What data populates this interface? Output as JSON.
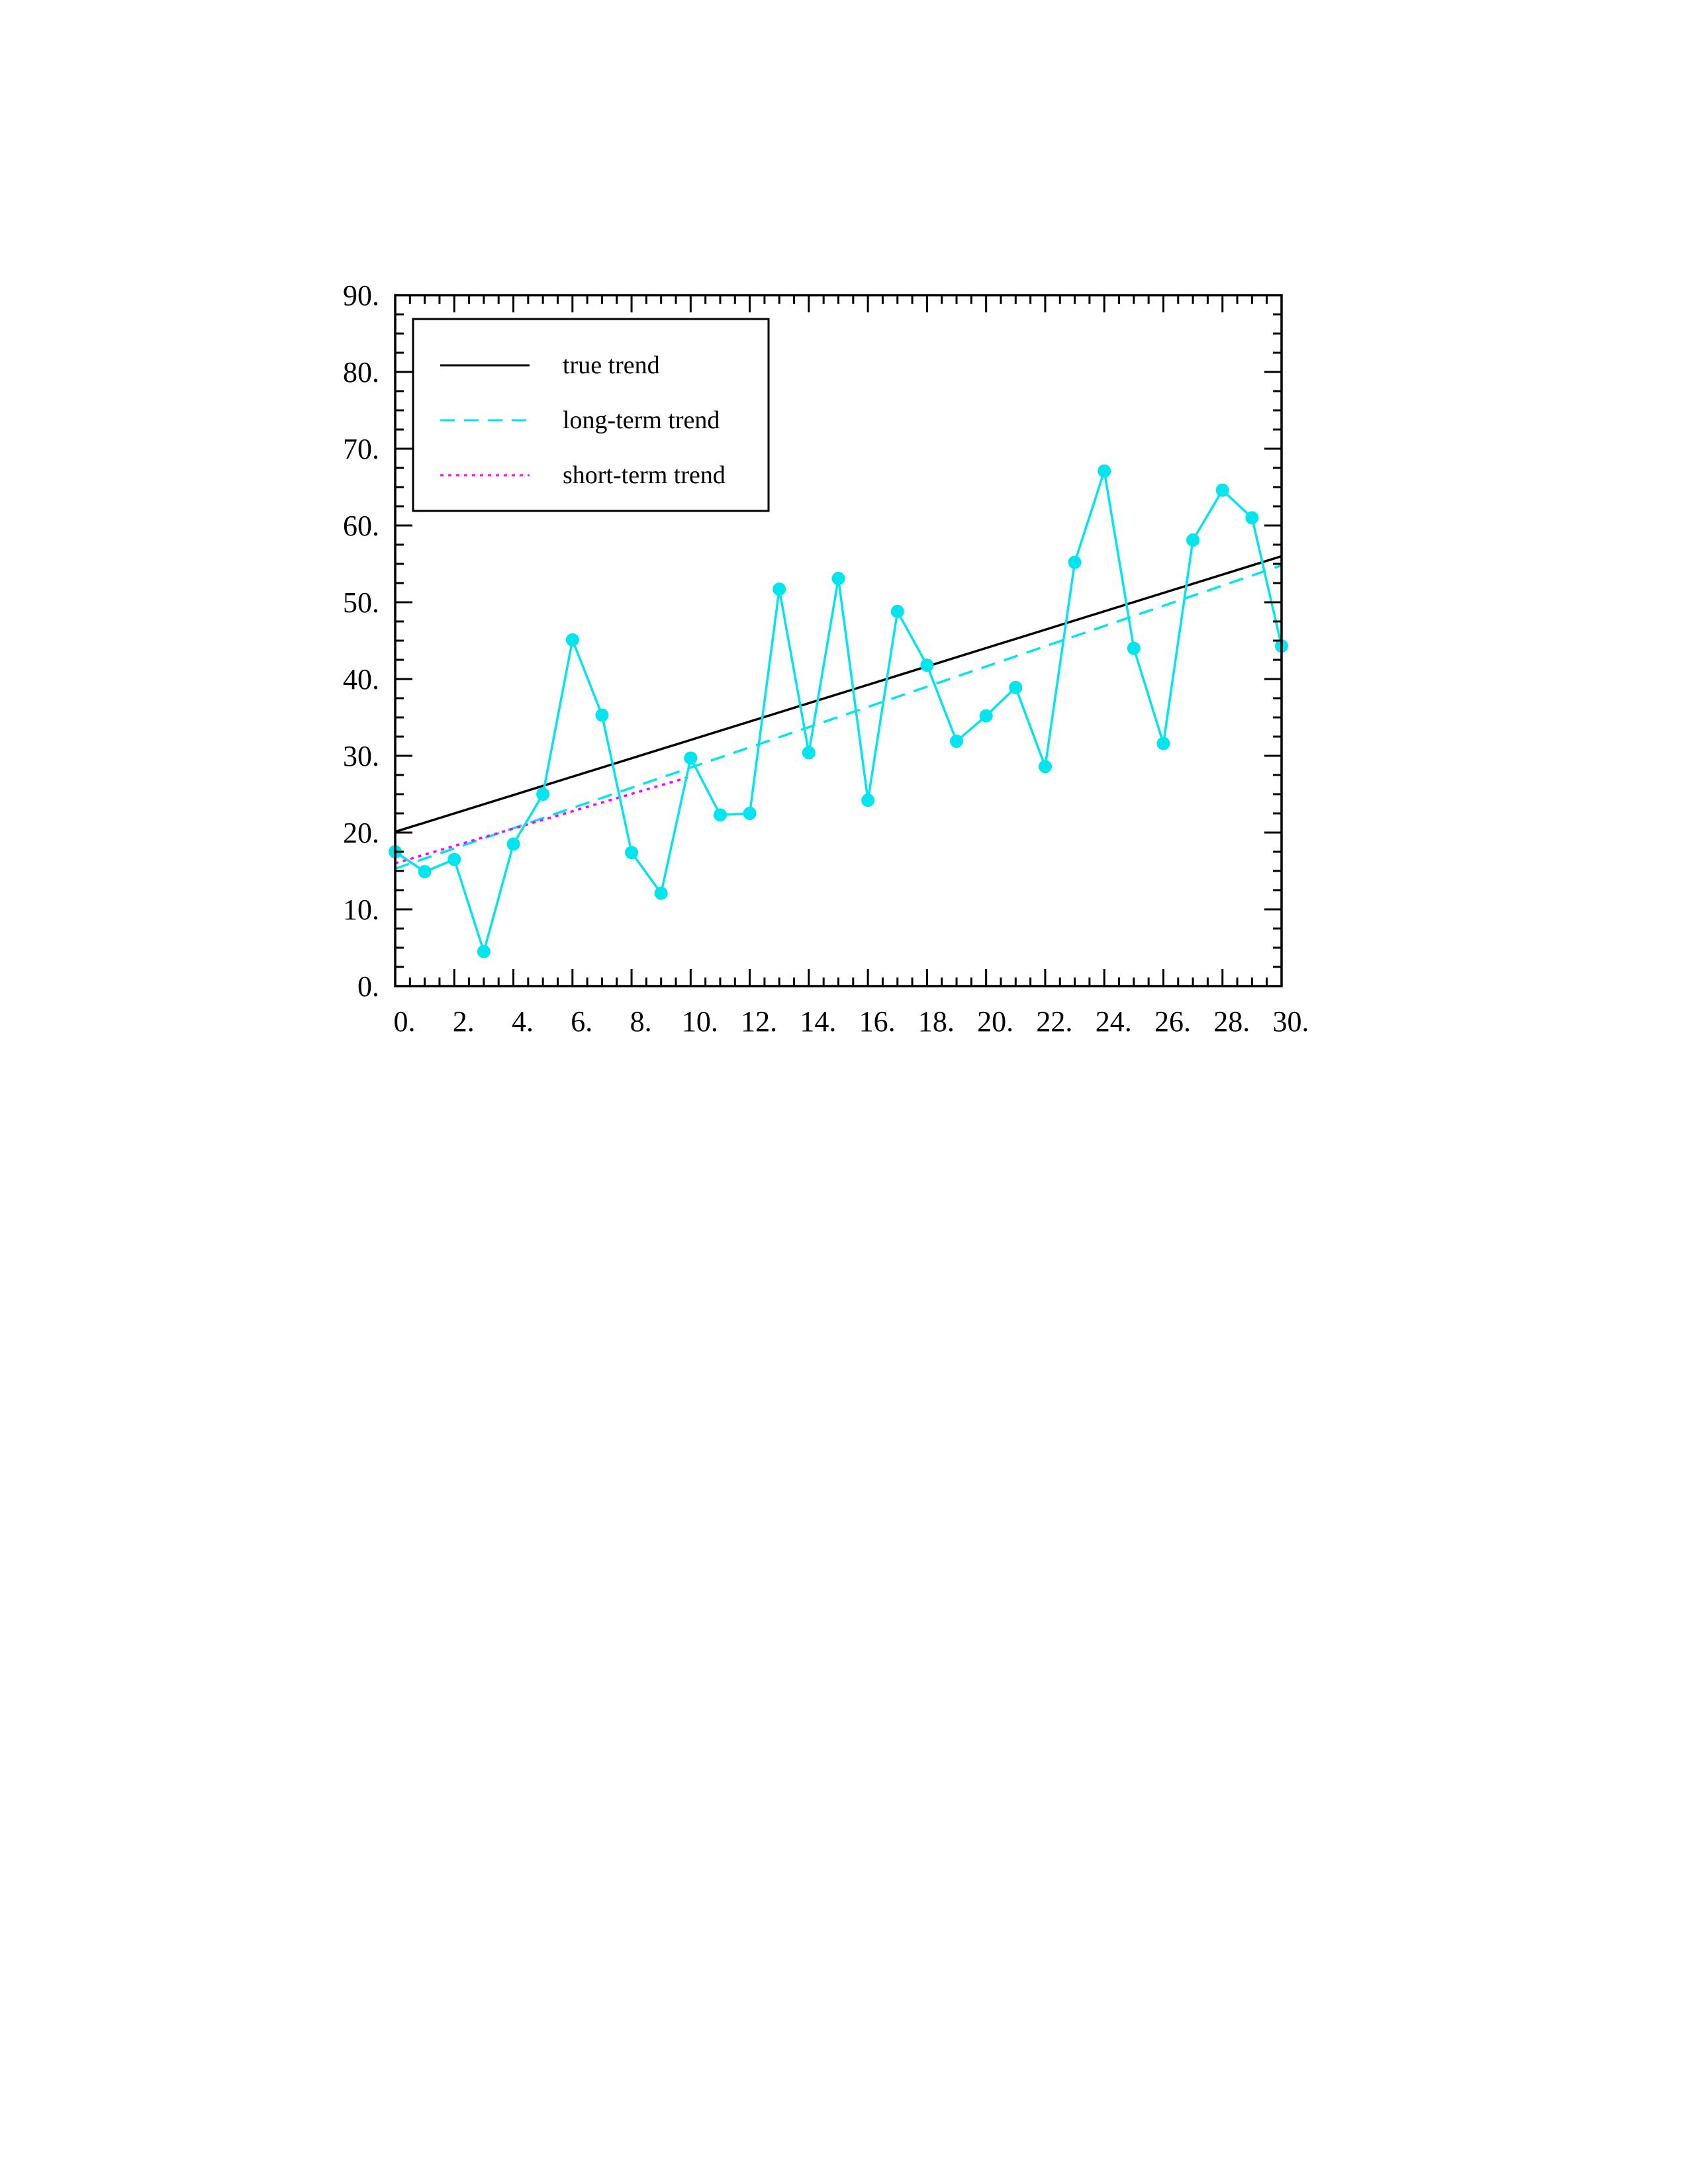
{
  "chart_data": {
    "type": "line",
    "title": "",
    "xlabel": "",
    "ylabel": "",
    "xlim": [
      0,
      30
    ],
    "ylim": [
      0,
      90
    ],
    "x_ticks": [
      0,
      2,
      4,
      6,
      8,
      10,
      12,
      14,
      16,
      18,
      20,
      22,
      24,
      26,
      28,
      30
    ],
    "x_tick_labels": [
      "0.",
      "2.",
      "4.",
      "6.",
      "8.",
      "10.",
      "12.",
      "14.",
      "16.",
      "18.",
      "20.",
      "22.",
      "24.",
      "26.",
      "28.",
      "30."
    ],
    "y_ticks": [
      0,
      10,
      20,
      30,
      40,
      50,
      60,
      70,
      80,
      90
    ],
    "y_tick_labels": [
      "0.",
      "10.",
      "20.",
      "30.",
      "40.",
      "50.",
      "60.",
      "70.",
      "80.",
      "90."
    ],
    "grid": false,
    "legend_position": "top-left",
    "observations": {
      "color": "#00e5ee",
      "x": [
        0,
        1,
        2,
        3,
        4,
        5,
        6,
        7,
        8,
        9,
        10,
        11,
        12,
        13,
        14,
        15,
        16,
        17,
        18,
        19,
        20,
        21,
        22,
        23,
        24,
        25,
        26,
        27,
        28,
        29,
        30
      ],
      "y": [
        17.5,
        14.9,
        16.5,
        4.5,
        18.5,
        25.0,
        45.1,
        35.3,
        17.4,
        12.1,
        29.7,
        22.3,
        22.5,
        51.7,
        30.4,
        53.1,
        24.2,
        48.8,
        41.8,
        31.9,
        35.2,
        38.9,
        28.6,
        55.2,
        67.1,
        44.0,
        31.6,
        58.1,
        64.6,
        61.0,
        44.3
      ]
    },
    "series": [
      {
        "name": "true trend",
        "style": "solid",
        "color": "#000000",
        "x": [
          0,
          30
        ],
        "y": [
          20.1,
          56.0
        ]
      },
      {
        "name": "long-term trend",
        "style": "dashed",
        "color": "#00e5ee",
        "x": [
          0,
          30
        ],
        "y": [
          15.3,
          54.8
        ]
      },
      {
        "name": "short-term trend",
        "style": "dotted",
        "color": "#ff00ff",
        "x": [
          0,
          10
        ],
        "y": [
          16.0,
          27.3
        ]
      }
    ]
  }
}
